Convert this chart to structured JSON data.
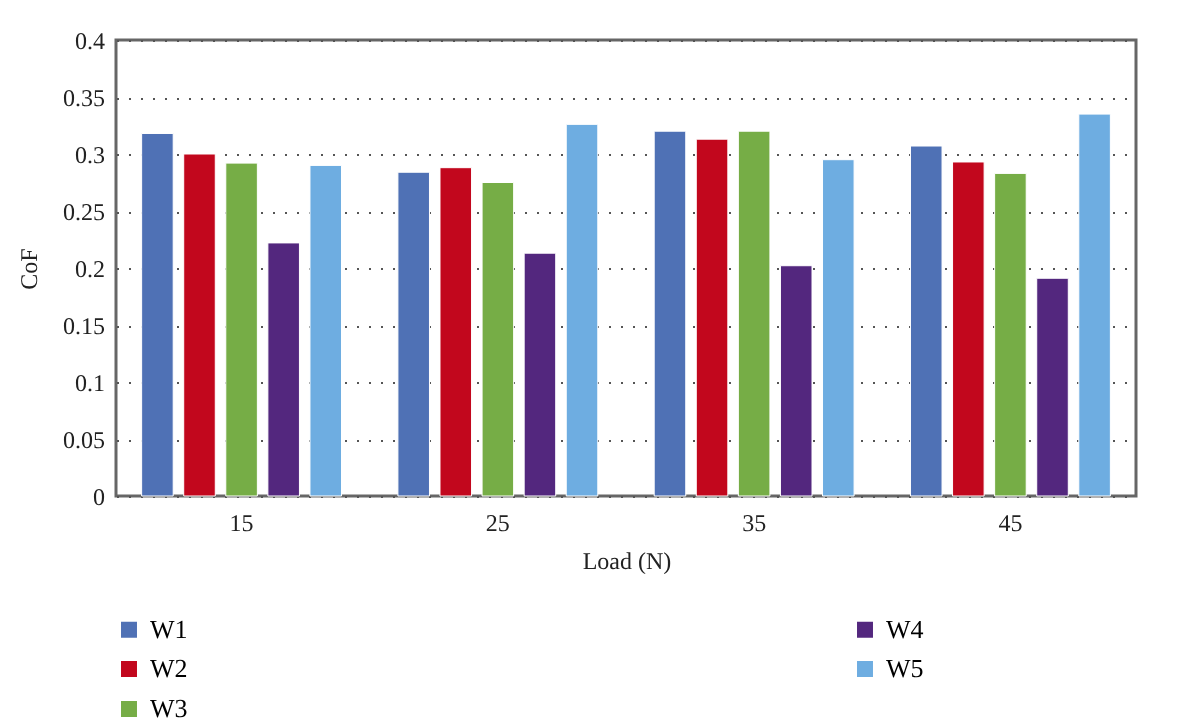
{
  "chart_data": {
    "type": "bar",
    "xlabel": "Load (N)",
    "ylabel": "CoF",
    "categories": [
      "15",
      "25",
      "35",
      "45"
    ],
    "series": [
      {
        "name": "W1",
        "color": "#4f71b5",
        "values": [
          0.318,
          0.284,
          0.32,
          0.307
        ]
      },
      {
        "name": "W2",
        "color": "#c2071d",
        "values": [
          0.3,
          0.288,
          0.313,
          0.293
        ]
      },
      {
        "name": "W3",
        "color": "#76ad46",
        "values": [
          0.292,
          0.275,
          0.32,
          0.283
        ]
      },
      {
        "name": "W4",
        "color": "#53277e",
        "values": [
          0.222,
          0.213,
          0.202,
          0.191
        ]
      },
      {
        "name": "W5",
        "color": "#6eade1",
        "values": [
          0.29,
          0.326,
          0.295,
          0.335
        ]
      }
    ],
    "ylim": [
      0,
      0.4
    ],
    "yticks": [
      0,
      0.05,
      0.1,
      0.15,
      0.2,
      0.25,
      0.3,
      0.35,
      0.4
    ],
    "grid": "y",
    "legend": "bottom"
  }
}
